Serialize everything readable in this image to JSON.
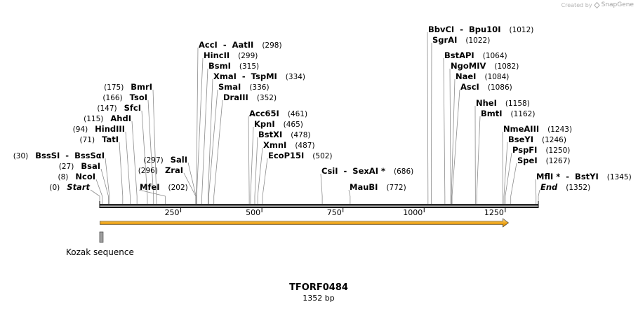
{
  "credit": {
    "prefix": "Created by",
    "brand": "SnapGene"
  },
  "sequence": {
    "name": "TFORF0484",
    "length_label": "1352 bp",
    "length": 1352
  },
  "ruler": {
    "ticks": [
      250,
      500,
      750,
      1000,
      1250
    ]
  },
  "orf": {
    "start": 1,
    "end": 1260,
    "color": "#f0a81e"
  },
  "feature": {
    "label": "Kozak sequence",
    "start": 1,
    "end": 12
  },
  "sites": [
    {
      "name": "Start",
      "pos": 0,
      "pos_label": "(0)",
      "italic": true
    },
    {
      "name": "NcoI",
      "pos": 8,
      "pos_label": "(8)"
    },
    {
      "name": "BsaI",
      "pos": 27,
      "pos_label": "(27)"
    },
    {
      "name": "BssSI  -  BssSαI",
      "pos": 30,
      "pos_label": "(30)"
    },
    {
      "name": "TatI",
      "pos": 71,
      "pos_label": "(71)"
    },
    {
      "name": "HindIII",
      "pos": 94,
      "pos_label": "(94)"
    },
    {
      "name": "AhdI",
      "pos": 115,
      "pos_label": "(115)"
    },
    {
      "name": "SfcI",
      "pos": 147,
      "pos_label": "(147)"
    },
    {
      "name": "TsoI",
      "pos": 166,
      "pos_label": "(166)"
    },
    {
      "name": "BmrI",
      "pos": 175,
      "pos_label": "(175)"
    },
    {
      "name": "MfeI",
      "pos": 202,
      "pos_label": "(202)"
    },
    {
      "name": "ZraI",
      "pos": 296,
      "pos_label": "(296)"
    },
    {
      "name": "SalI",
      "pos": 297,
      "pos_label": "(297)"
    },
    {
      "name": "AccI  -  AatII",
      "pos": 298,
      "pos_label": "(298)"
    },
    {
      "name": "HincII",
      "pos": 299,
      "pos_label": "(299)"
    },
    {
      "name": "BsmI",
      "pos": 315,
      "pos_label": "(315)"
    },
    {
      "name": "XmaI  -  TspMI",
      "pos": 334,
      "pos_label": "(334)"
    },
    {
      "name": "SmaI",
      "pos": 336,
      "pos_label": "(336)"
    },
    {
      "name": "DraIII",
      "pos": 352,
      "pos_label": "(352)"
    },
    {
      "name": "Acc65I",
      "pos": 461,
      "pos_label": "(461)"
    },
    {
      "name": "KpnI",
      "pos": 465,
      "pos_label": "(465)"
    },
    {
      "name": "BstXI",
      "pos": 478,
      "pos_label": "(478)"
    },
    {
      "name": "XmnI",
      "pos": 487,
      "pos_label": "(487)"
    },
    {
      "name": "EcoP15I",
      "pos": 502,
      "pos_label": "(502)"
    },
    {
      "name": "CsiI  -  SexAI *",
      "pos": 686,
      "pos_label": "(686)"
    },
    {
      "name": "MauBI",
      "pos": 772,
      "pos_label": "(772)"
    },
    {
      "name": "BbvCI  -  Bpu10I",
      "pos": 1012,
      "pos_label": "(1012)"
    },
    {
      "name": "SgrAI",
      "pos": 1022,
      "pos_label": "(1022)"
    },
    {
      "name": "BstAPI",
      "pos": 1064,
      "pos_label": "(1064)"
    },
    {
      "name": "NgoMIV",
      "pos": 1082,
      "pos_label": "(1082)"
    },
    {
      "name": "NaeI",
      "pos": 1084,
      "pos_label": "(1084)"
    },
    {
      "name": "AscI",
      "pos": 1086,
      "pos_label": "(1086)"
    },
    {
      "name": "NheI",
      "pos": 1158,
      "pos_label": "(1158)"
    },
    {
      "name": "BmtI",
      "pos": 1162,
      "pos_label": "(1162)"
    },
    {
      "name": "NmeAIII",
      "pos": 1243,
      "pos_label": "(1243)"
    },
    {
      "name": "BseYI",
      "pos": 1246,
      "pos_label": "(1246)"
    },
    {
      "name": "PspFI",
      "pos": 1250,
      "pos_label": "(1250)"
    },
    {
      "name": "SpeI",
      "pos": 1267,
      "pos_label": "(1267)"
    },
    {
      "name": "MflI *  -  BstYI",
      "pos": 1345,
      "pos_label": "(1345)"
    },
    {
      "name": "End",
      "pos": 1352,
      "pos_label": "(1352)",
      "italic": true
    }
  ]
}
